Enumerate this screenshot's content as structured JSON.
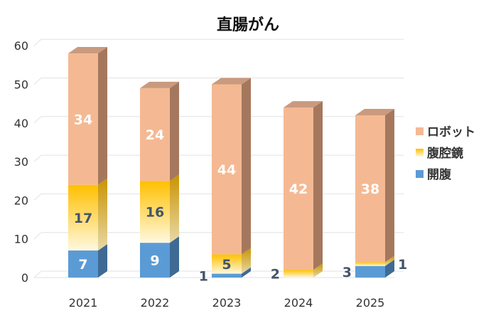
{
  "chart_data": {
    "type": "bar",
    "stacked": true,
    "three_d": true,
    "title": "直腸がん",
    "xlabel": "",
    "ylabel": "",
    "ylim": [
      0,
      60
    ],
    "yticks": [
      0,
      10,
      20,
      30,
      40,
      50,
      60
    ],
    "categories": [
      "2021",
      "2022",
      "2023",
      "2024",
      "2025"
    ],
    "series": [
      {
        "name": "開腹",
        "values": [
          7,
          9,
          1,
          0,
          3
        ],
        "color": "#5B9BD5",
        "label_color": "#ffffff"
      },
      {
        "name": "腹腔鏡",
        "values": [
          17,
          16,
          5,
          2,
          1
        ],
        "color": "#FFC000",
        "label_color": "#44546A"
      },
      {
        "name": "ロボット",
        "values": [
          34,
          24,
          44,
          42,
          38
        ],
        "color": "#F4B993",
        "label_color": "#ffffff"
      }
    ],
    "legend_order": [
      "ロボット",
      "腹腔鏡",
      "開腹"
    ],
    "legend": "right",
    "grid": true
  }
}
